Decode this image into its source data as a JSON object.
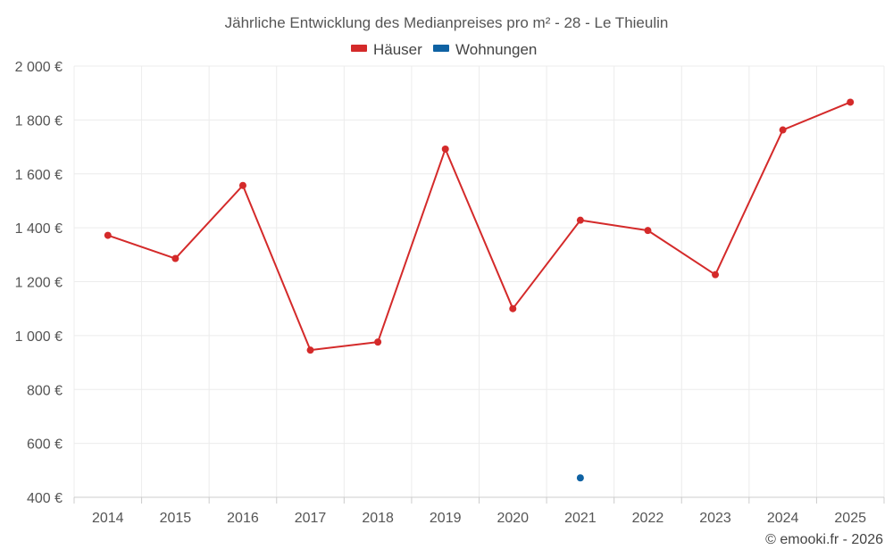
{
  "chart_data": {
    "type": "line",
    "title": "Jährliche Entwicklung des Medianpreises pro m² - 28 - Le Thieulin",
    "categories": [
      "2014",
      "2015",
      "2016",
      "2017",
      "2018",
      "2019",
      "2020",
      "2021",
      "2022",
      "2023",
      "2024",
      "2025"
    ],
    "series": [
      {
        "name": "Häuser",
        "color": "#d42a2a",
        "values": [
          1372,
          1286,
          1557,
          946,
          976,
          1692,
          1100,
          1428,
          1390,
          1226,
          1763,
          1866
        ]
      },
      {
        "name": "Wohnungen",
        "color": "#0f62a3",
        "values": [
          null,
          null,
          null,
          null,
          null,
          null,
          null,
          472,
          null,
          null,
          null,
          null
        ]
      }
    ],
    "ylim": [
      400,
      2000
    ],
    "yticks": [
      400,
      600,
      800,
      1000,
      1200,
      1400,
      1600,
      1800,
      2000
    ],
    "ytick_labels": [
      "400 €",
      "600 €",
      "800 €",
      "1 000 €",
      "1 200 €",
      "1 400 €",
      "1 600 €",
      "1 800 €",
      "2 000 €"
    ],
    "xlabel": "",
    "ylabel": "",
    "grid": true,
    "legend_position": "top-center"
  },
  "credit": "© emooki.fr - 2026"
}
